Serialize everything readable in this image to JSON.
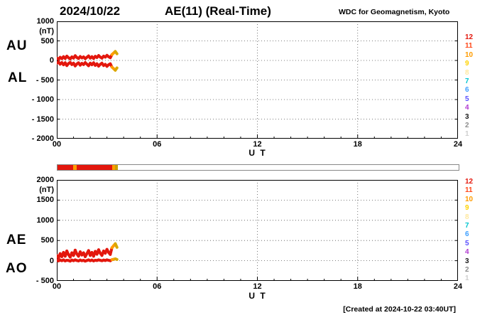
{
  "header": {
    "date": "2024/10/22",
    "title": "AE(11) (Real-Time)",
    "source": "WDC for Geomagnetism, Kyoto"
  },
  "footer": {
    "created_at": "[Created at 2024-10-22 03:40UT]"
  },
  "legend": {
    "stations": [
      {
        "label": "12",
        "color": "#e3170d"
      },
      {
        "label": "11",
        "color": "#ff4719"
      },
      {
        "label": "10",
        "color": "#ff9c00"
      },
      {
        "label": "9",
        "color": "#ffd300"
      },
      {
        "label": "8",
        "color": "#ffe9a0"
      },
      {
        "label": "7",
        "color": "#00c5cf"
      },
      {
        "label": "6",
        "color": "#3fa0ff"
      },
      {
        "label": "5",
        "color": "#5a4fff"
      },
      {
        "label": "4",
        "color": "#b03ad1"
      },
      {
        "label": "3",
        "color": "#1a1a1a"
      },
      {
        "label": "2",
        "color": "#8d8d8d"
      },
      {
        "label": "1",
        "color": "#cfcfcf"
      }
    ]
  },
  "availability_bar": {
    "segments": [
      {
        "start": 0,
        "end": 0.95,
        "color": "#e3170d"
      },
      {
        "start": 0.95,
        "end": 1.15,
        "color": "#ff9c00"
      },
      {
        "start": 1.15,
        "end": 3.25,
        "color": "#e3170d"
      },
      {
        "start": 3.25,
        "end": 3.45,
        "color": "#ff9c00"
      },
      {
        "start": 3.45,
        "end": 3.6,
        "color": "#c9a100"
      },
      {
        "start": 3.6,
        "end": 24,
        "color": "#ffffff"
      }
    ]
  },
  "chart_data": [
    {
      "type": "line",
      "panel": "AU-AL",
      "left_labels": [
        "AU",
        "AL"
      ],
      "unit": "(nT)",
      "xlabel": "U T",
      "ylim": [
        -2000,
        1000
      ],
      "yticks": [
        1000,
        500,
        0,
        -500,
        -1000,
        -1500,
        -2000
      ],
      "ytick_labels": [
        "1000",
        "500",
        "0",
        "- 500",
        "- 1000",
        "- 1500",
        "- 2000"
      ],
      "xticks": [
        {
          "t": 0,
          "label": "00"
        },
        {
          "t": 6,
          "label": "06"
        },
        {
          "t": 12,
          "label": "12"
        },
        {
          "t": 18,
          "label": "18"
        },
        {
          "t": 24,
          "label": "24"
        }
      ],
      "grid_x": [
        6,
        12,
        18
      ],
      "xlim": [
        0,
        24
      ],
      "color_stops": [
        {
          "until": 3.25,
          "color": "#e3170d"
        },
        {
          "until": 3.45,
          "color": "#ff9c00"
        },
        {
          "until": 99,
          "color": "#d7a800"
        }
      ],
      "x": [
        0,
        0.1,
        0.2,
        0.3,
        0.4,
        0.5,
        0.6,
        0.7,
        0.8,
        0.9,
        1.0,
        1.1,
        1.2,
        1.3,
        1.4,
        1.5,
        1.6,
        1.7,
        1.8,
        1.9,
        2.0,
        2.1,
        2.2,
        2.3,
        2.4,
        2.5,
        2.6,
        2.7,
        2.8,
        2.9,
        3.0,
        3.1,
        3.2,
        3.3,
        3.4,
        3.5,
        3.6
      ],
      "series": [
        {
          "name": "AU",
          "values": [
            60,
            30,
            80,
            45,
            95,
            50,
            110,
            70,
            40,
            90,
            60,
            120,
            75,
            50,
            100,
            65,
            90,
            45,
            80,
            115,
            60,
            95,
            50,
            105,
            75,
            125,
            85,
            60,
            110,
            85,
            130,
            95,
            70,
            150,
            190,
            230,
            170
          ]
        },
        {
          "name": "AL",
          "values": [
            -70,
            -40,
            -95,
            -55,
            -110,
            -60,
            -130,
            -80,
            -50,
            -105,
            -70,
            -140,
            -90,
            -60,
            -120,
            -75,
            -105,
            -55,
            -95,
            -135,
            -70,
            -110,
            -60,
            -125,
            -85,
            -145,
            -100,
            -70,
            -130,
            -100,
            -150,
            -110,
            -85,
            -170,
            -210,
            -250,
            -190
          ]
        }
      ]
    },
    {
      "type": "line",
      "panel": "AE-AO",
      "left_labels": [
        "AE",
        "AO"
      ],
      "unit": "(nT)",
      "xlabel": "U T",
      "ylim": [
        -500,
        2000
      ],
      "yticks": [
        2000,
        1500,
        1000,
        500,
        0,
        -500
      ],
      "ytick_labels": [
        "2000",
        "1500",
        "1000",
        "500",
        "0",
        "- 500"
      ],
      "xticks": [
        {
          "t": 0,
          "label": "00"
        },
        {
          "t": 6,
          "label": "06"
        },
        {
          "t": 12,
          "label": "12"
        },
        {
          "t": 18,
          "label": "18"
        },
        {
          "t": 24,
          "label": "24"
        }
      ],
      "grid_x": [
        6,
        12,
        18
      ],
      "xlim": [
        0,
        24
      ],
      "color_stops": [
        {
          "until": 3.25,
          "color": "#e3170d"
        },
        {
          "until": 3.45,
          "color": "#ff9c00"
        },
        {
          "until": 99,
          "color": "#d7a800"
        }
      ],
      "x": [
        0,
        0.1,
        0.2,
        0.3,
        0.4,
        0.5,
        0.6,
        0.7,
        0.8,
        0.9,
        1.0,
        1.1,
        1.2,
        1.3,
        1.4,
        1.5,
        1.6,
        1.7,
        1.8,
        1.9,
        2.0,
        2.1,
        2.2,
        2.3,
        2.4,
        2.5,
        2.6,
        2.7,
        2.8,
        2.9,
        3.0,
        3.1,
        3.2,
        3.3,
        3.4,
        3.5,
        3.6
      ],
      "series": [
        {
          "name": "AE",
          "values": [
            130,
            70,
            175,
            100,
            205,
            110,
            240,
            150,
            90,
            195,
            130,
            260,
            165,
            110,
            220,
            140,
            195,
            100,
            175,
            250,
            130,
            205,
            110,
            230,
            160,
            270,
            185,
            130,
            240,
            185,
            280,
            205,
            155,
            320,
            370,
            420,
            330
          ]
        },
        {
          "name": "AO",
          "values": [
            10,
            -5,
            15,
            0,
            20,
            -5,
            10,
            5,
            -10,
            15,
            0,
            20,
            5,
            -5,
            15,
            0,
            10,
            -10,
            5,
            20,
            0,
            15,
            -5,
            10,
            5,
            20,
            10,
            0,
            15,
            5,
            20,
            10,
            0,
            25,
            35,
            45,
            30
          ]
        }
      ]
    }
  ]
}
